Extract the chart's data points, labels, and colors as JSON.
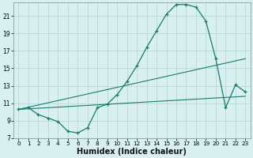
{
  "xlabel": "Humidex (Indice chaleur)",
  "background_color": "#d8f0f0",
  "grid_color": "#b8d8d8",
  "line_color": "#1a7a6e",
  "xlim": [
    -0.5,
    23.5
  ],
  "ylim": [
    7,
    22.5
  ],
  "yticks": [
    7,
    9,
    11,
    13,
    15,
    17,
    19,
    21
  ],
  "xticks": [
    0,
    1,
    2,
    3,
    4,
    5,
    6,
    7,
    8,
    9,
    10,
    11,
    12,
    13,
    14,
    15,
    16,
    17,
    18,
    19,
    20,
    21,
    22,
    23
  ],
  "curve1_x": [
    0,
    1,
    2,
    3,
    4,
    5,
    6,
    7,
    8,
    9,
    10,
    11,
    12,
    13,
    14,
    15,
    16,
    17,
    18,
    19,
    20,
    21,
    22,
    23
  ],
  "curve1_y": [
    10.3,
    10.5,
    9.7,
    9.3,
    8.9,
    7.8,
    7.6,
    8.2,
    10.5,
    10.9,
    12.0,
    13.5,
    15.3,
    17.4,
    19.3,
    21.2,
    22.3,
    22.3,
    22.0,
    20.4,
    16.1,
    10.5,
    13.1,
    12.3
  ],
  "curve2_x": [
    0,
    23
  ],
  "curve2_y": [
    10.3,
    16.1
  ],
  "curve3_x": [
    0,
    23
  ],
  "curve3_y": [
    10.3,
    11.8
  ]
}
